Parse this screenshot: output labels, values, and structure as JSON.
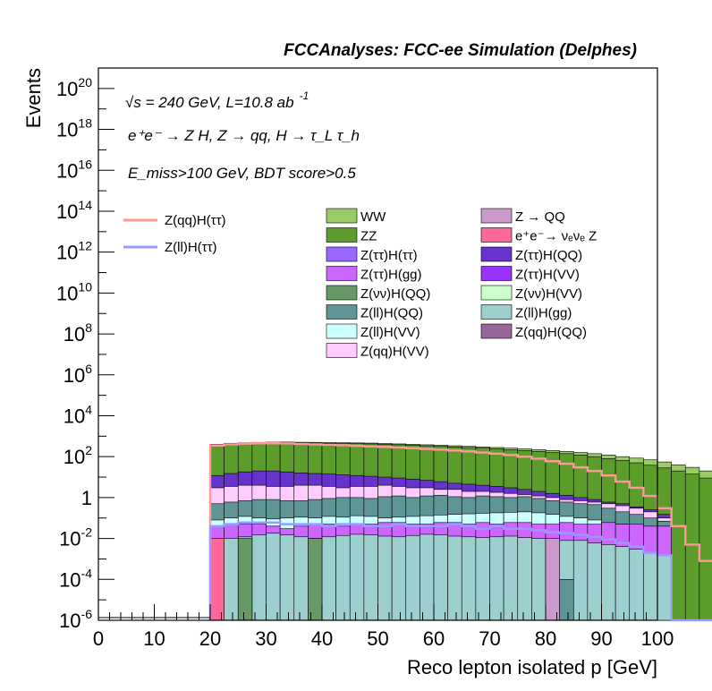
{
  "header": "FCCAnalyses: FCC-ee Simulation (Delphes)",
  "annotations": {
    "energy": "√s = 240 GeV, L=10.8 ab",
    "energy_sup": "-1",
    "process": "e⁺e⁻ → Z H, Z → qq, H → τ_L τ_h",
    "selection": "E_miss>100 GeV, BDT score>0.5"
  },
  "chart_data": {
    "type": "histogram",
    "title": "FCCAnalyses: FCC-ee Simulation (Delphes)",
    "xlabel": "Reco lepton isolated p [GeV]",
    "ylabel": "Events",
    "xlim": [
      0,
      100
    ],
    "ylim": [
      1e-06,
      1e+21
    ],
    "yscale": "log",
    "grid": false,
    "legend_position": "top",
    "bin_width": 2.5,
    "x_ticks": [
      "0",
      "10",
      "20",
      "30",
      "40",
      "50",
      "60",
      "70",
      "80",
      "90",
      "100"
    ],
    "y_ticks": [
      {
        "value": 1e-06,
        "base": "10",
        "exp": "-6"
      },
      {
        "value": 0.0001,
        "base": "10",
        "exp": "-4"
      },
      {
        "value": 0.01,
        "base": "10",
        "exp": "-2"
      },
      {
        "value": 1,
        "base": "1",
        "exp": ""
      },
      {
        "value": 100.0,
        "base": "10",
        "exp": "2"
      },
      {
        "value": 10000.0,
        "base": "10",
        "exp": "4"
      },
      {
        "value": 1000000.0,
        "base": "10",
        "exp": "6"
      },
      {
        "value": 100000000.0,
        "base": "10",
        "exp": "8"
      },
      {
        "value": 10000000000.0,
        "base": "10",
        "exp": "10"
      },
      {
        "value": 1000000000000.0,
        "base": "10",
        "exp": "12"
      },
      {
        "value": 100000000000000.0,
        "base": "10",
        "exp": "14"
      },
      {
        "value": 1e+16,
        "base": "10",
        "exp": "16"
      },
      {
        "value": 1e+18,
        "base": "10",
        "exp": "18"
      },
      {
        "value": 1e+20,
        "base": "10",
        "exp": "20"
      }
    ],
    "stack_levels": [
      {
        "name": "Z(ll)H(gg)",
        "color": "#9ecfcf",
        "values": [
          0.008,
          0.01,
          0.012,
          0.015,
          0.018,
          0.015,
          0.012,
          0.01,
          0.012,
          0.014,
          0.016,
          0.015,
          0.013,
          0.012,
          0.014,
          0.016,
          0.015,
          0.013,
          0.012,
          0.011,
          0.012,
          0.013,
          0.011,
          0.01,
          0.009,
          0.008,
          0.008,
          0.006,
          0.005,
          0.004,
          0.003,
          0.002,
          0.0015,
          0,
          0,
          0,
          0,
          0,
          0,
          0
        ]
      },
      {
        "name": "Z(ττ)H(gg)",
        "color": "#cc66ff",
        "values": [
          0.04,
          0.05,
          0.05,
          0.05,
          0.04,
          0.03,
          0.04,
          0.05,
          0.05,
          0.04,
          0.05,
          0.05,
          0.06,
          0.06,
          0.05,
          0.05,
          0.06,
          0.06,
          0.05,
          0.06,
          0.05,
          0.06,
          0.06,
          0.05,
          0.05,
          0.06,
          0.05,
          0.05,
          0.06,
          0.05,
          0.05,
          0.04,
          0.04,
          0,
          0,
          0,
          0,
          0,
          0,
          0
        ]
      },
      {
        "name": "Z(ll)H(VV)",
        "color": "#ccffff",
        "values": [
          0.08,
          0.1,
          0.12,
          0.1,
          0.09,
          0.1,
          0.11,
          0.1,
          0.12,
          0.11,
          0.13,
          0.12,
          0.1,
          0.11,
          0.12,
          0.13,
          0.14,
          0.15,
          0.16,
          0.17,
          0.18,
          0.19,
          0.2,
          0.18,
          0.15,
          0.12,
          0.1,
          0.08,
          0.06,
          0.05,
          0.04,
          0.03,
          0.02,
          0,
          0,
          0,
          0,
          0,
          0,
          0
        ]
      },
      {
        "name": "Z(ll)H(QQ)",
        "color": "#5f9595",
        "values": [
          0.5,
          0.6,
          0.7,
          0.8,
          0.8,
          0.7,
          0.7,
          0.8,
          0.9,
          1.0,
          1.0,
          0.9,
          1.1,
          1.2,
          1.0,
          1.2,
          1.3,
          1.1,
          1.0,
          1.2,
          1.1,
          1.0,
          1.1,
          0.9,
          0.7,
          0.6,
          0.5,
          0.45,
          0.3,
          0.2,
          0.15,
          0.1,
          0.07,
          0,
          0,
          0,
          0,
          0,
          0,
          0
        ]
      },
      {
        "name": "Z(qq)H(VV)",
        "color": "#ffccff",
        "values": [
          3,
          3.5,
          4,
          4,
          3.5,
          3.5,
          4,
          4,
          3.5,
          3,
          3.5,
          3.5,
          4,
          3.5,
          3,
          3,
          2.5,
          2.5,
          2,
          2,
          1.8,
          1.6,
          1.4,
          1.2,
          1,
          0.8,
          0.7,
          0.6,
          0.5,
          0.4,
          0.3,
          0.2,
          0.1,
          0,
          0,
          0,
          0,
          0,
          0,
          0
        ]
      },
      {
        "name": "Z(ττ)H(QQ)",
        "color": "#6633cc",
        "values": [
          12,
          15,
          18,
          20,
          20,
          18,
          16,
          15,
          14,
          13,
          12,
          11,
          10,
          9,
          8,
          7,
          6,
          5,
          4.5,
          4,
          3.5,
          3,
          2.5,
          2,
          1.6,
          1.3,
          1,
          0.8,
          0.6,
          0.5,
          0.35,
          0.25,
          0.15,
          0,
          0,
          0,
          0,
          0,
          0,
          0
        ]
      },
      {
        "name": "ZZ",
        "color": "#5c9c2b",
        "values": [
          380,
          420,
          450,
          470,
          480,
          480,
          470,
          460,
          450,
          440,
          430,
          420,
          400,
          380,
          360,
          340,
          320,
          300,
          280,
          260,
          240,
          220,
          200,
          180,
          160,
          140,
          120,
          100,
          80,
          65,
          50,
          38,
          28,
          20,
          14,
          9,
          5,
          3,
          0,
          0
        ]
      },
      {
        "name": "WW",
        "color": "#99cc66",
        "values": [
          400,
          450,
          480,
          500,
          510,
          515,
          505,
          500,
          490,
          480,
          470,
          460,
          440,
          420,
          400,
          380,
          360,
          340,
          320,
          300,
          280,
          260,
          240,
          220,
          200,
          180,
          160,
          140,
          120,
          100,
          85,
          70,
          55,
          40,
          30,
          20,
          12,
          6,
          3,
          0
        ]
      }
    ],
    "series": [
      {
        "name": "Z(qq)H(ττ)",
        "color": "#ff9999",
        "values": [
          350,
          400,
          430,
          450,
          450,
          440,
          420,
          400,
          380,
          360,
          340,
          320,
          300,
          280,
          260,
          240,
          220,
          200,
          180,
          160,
          140,
          120,
          100,
          80,
          60,
          45,
          30,
          20,
          12,
          6,
          3,
          1.2,
          0.3,
          0.04,
          0.005,
          0.0008,
          0.0001,
          0,
          0,
          0
        ]
      },
      {
        "name": "Z(ll)H(ττ)",
        "color": "#9999ff",
        "values": [
          0.04,
          0.05,
          0.06,
          0.06,
          0.06,
          0.05,
          0.05,
          0.05,
          0.04,
          0.05,
          0.05,
          0.04,
          0.04,
          0.05,
          0.04,
          0.04,
          0.04,
          0.05,
          0.04,
          0.03,
          0.04,
          0.03,
          0.03,
          0.025,
          0.02,
          0.018,
          0.015,
          0.012,
          0.009,
          0.006,
          0.004,
          0.002,
          0.0015,
          0,
          0,
          0,
          0,
          0,
          0,
          0
        ]
      }
    ],
    "spikes": [
      {
        "name": "e⁺e⁻→ νₑνₑ Z",
        "color": "#ff6699",
        "x": [
          20,
          22.5
        ],
        "y": 0.01
      },
      {
        "name": "Z(νν)H(QQ)",
        "color": "#669966",
        "x": [
          25,
          27.5
        ],
        "y": 0.01
      },
      {
        "name": "Z(νν)H(QQ)",
        "color": "#669966",
        "x": [
          37.5,
          40
        ],
        "y": 0.01
      },
      {
        "name": "Z → QQ",
        "color": "#cc99cc",
        "x": [
          80,
          82.5
        ],
        "y": 0.01
      },
      {
        "name": "Z(ll)H(QQ)",
        "color": "#5f9595",
        "x": [
          82.5,
          85
        ],
        "y": 0.0001
      }
    ],
    "legend": [
      {
        "name": "Z(qq)H(ττ)",
        "color": "#ff9999",
        "kind": "line"
      },
      {
        "name": "Z(ll)H(ττ)",
        "color": "#9999ff",
        "kind": "line"
      },
      {
        "name": "WW",
        "color": "#99cc66",
        "kind": "box"
      },
      {
        "name": "Z → QQ",
        "color": "#cc99cc",
        "kind": "box"
      },
      {
        "name": "ZZ",
        "color": "#5c9c2b",
        "kind": "box"
      },
      {
        "name": "e⁺e⁻→ νₑνₑ Z",
        "color": "#ff6699",
        "kind": "box"
      },
      {
        "name": "Z(ττ)H(ττ)",
        "color": "#9966ff",
        "kind": "box"
      },
      {
        "name": "Z(ττ)H(QQ)",
        "color": "#6633cc",
        "kind": "box"
      },
      {
        "name": "Z(ττ)H(gg)",
        "color": "#cc66ff",
        "kind": "box"
      },
      {
        "name": "Z(ττ)H(VV)",
        "color": "#9933ff",
        "kind": "box"
      },
      {
        "name": "Z(νν)H(QQ)",
        "color": "#669966",
        "kind": "box"
      },
      {
        "name": "Z(νν)H(VV)",
        "color": "#ccffcc",
        "kind": "box"
      },
      {
        "name": "Z(ll)H(QQ)",
        "color": "#5f9595",
        "kind": "box"
      },
      {
        "name": "Z(ll)H(gg)",
        "color": "#9ecfcf",
        "kind": "box"
      },
      {
        "name": "Z(ll)H(VV)",
        "color": "#ccffff",
        "kind": "box"
      },
      {
        "name": "Z(qq)H(QQ)",
        "color": "#996699",
        "kind": "box"
      },
      {
        "name": "Z(qq)H(VV)",
        "color": "#ffccff",
        "kind": "box"
      }
    ]
  }
}
